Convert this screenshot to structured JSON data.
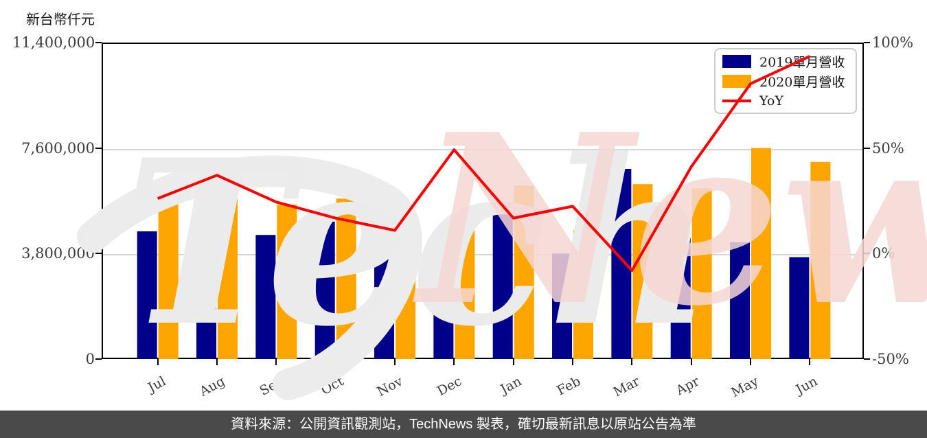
{
  "unit_label": "新台幣仟元",
  "footer": {
    "text": "資料來源：公開資訊觀測站，TechNews 製表，確切最新訊息以原站公告為準"
  },
  "watermark": {
    "part1": "Tech",
    "part2": "News",
    "color1": "#ebebeb",
    "color2": "#f6d8d4"
  },
  "legend": {
    "items": [
      {
        "label": "2019單月營收",
        "color": "#00008B",
        "kind": "bar"
      },
      {
        "label": "2020單月營收",
        "color": "#FFA500",
        "kind": "bar"
      },
      {
        "label": "YoY",
        "color": "#FF0000",
        "kind": "line"
      }
    ]
  },
  "chart_data": {
    "type": "bar",
    "subtype": "grouped-bars-with-line",
    "title": "新台幣仟元",
    "categories": [
      "Jul",
      "Aug",
      "Sep",
      "Oct",
      "Nov",
      "Dec",
      "Jan",
      "Feb",
      "Mar",
      "Apr",
      "May",
      "Jun"
    ],
    "series": [
      {
        "name": "2019單月營收",
        "color": "#00008B",
        "values": [
          4600000,
          4450000,
          4470000,
          4950000,
          4730000,
          3170000,
          5350000,
          3800000,
          6850000,
          4360000,
          4210000,
          3670000
        ]
      },
      {
        "name": "2020單月營收",
        "color": "#FFA500",
        "values": [
          5800000,
          6100000,
          5560000,
          5780000,
          5250000,
          4730000,
          6250000,
          4650000,
          6300000,
          6150000,
          7600000,
          7100000
        ]
      }
    ],
    "line_series": {
      "name": "YoY",
      "color": "#FF0000",
      "values_pct": [
        26.1,
        37.1,
        24.4,
        16.8,
        11.0,
        49.2,
        16.8,
        22.4,
        -8.0,
        41.1,
        80.5,
        93.5
      ]
    },
    "left_axis": {
      "unit": "新台幣仟元",
      "max": 11400000,
      "tick_values": [
        0,
        3800000,
        7600000,
        11400000
      ],
      "tick_labels": [
        "0",
        "3,800,000",
        "7,600,000",
        "11,400,000"
      ]
    },
    "right_axis": {
      "min": -50,
      "max": 100,
      "tick_values": [
        -50,
        0,
        50,
        100
      ],
      "tick_labels": [
        "-50%",
        "0%",
        "50%",
        "100%"
      ]
    },
    "grid": "horizontal",
    "legend_position": "upper-right"
  }
}
